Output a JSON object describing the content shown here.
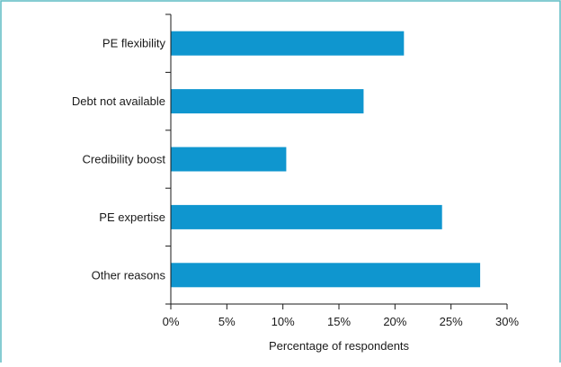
{
  "chart_data": {
    "type": "bar",
    "orientation": "horizontal",
    "categories": [
      "PE flexibility",
      "Debt not available",
      "Credibility boost",
      "PE expertise",
      "Other reasons"
    ],
    "values": [
      20.8,
      17.2,
      10.3,
      24.2,
      27.6
    ],
    "xlabel": "Percentage of respondents",
    "xlim": [
      0,
      30
    ],
    "xticks": [
      "0%",
      "5%",
      "10%",
      "15%",
      "20%",
      "25%",
      "30%"
    ],
    "grid": false,
    "bar_color": "#0f96cf",
    "frame_color": "#5fbcc4"
  }
}
